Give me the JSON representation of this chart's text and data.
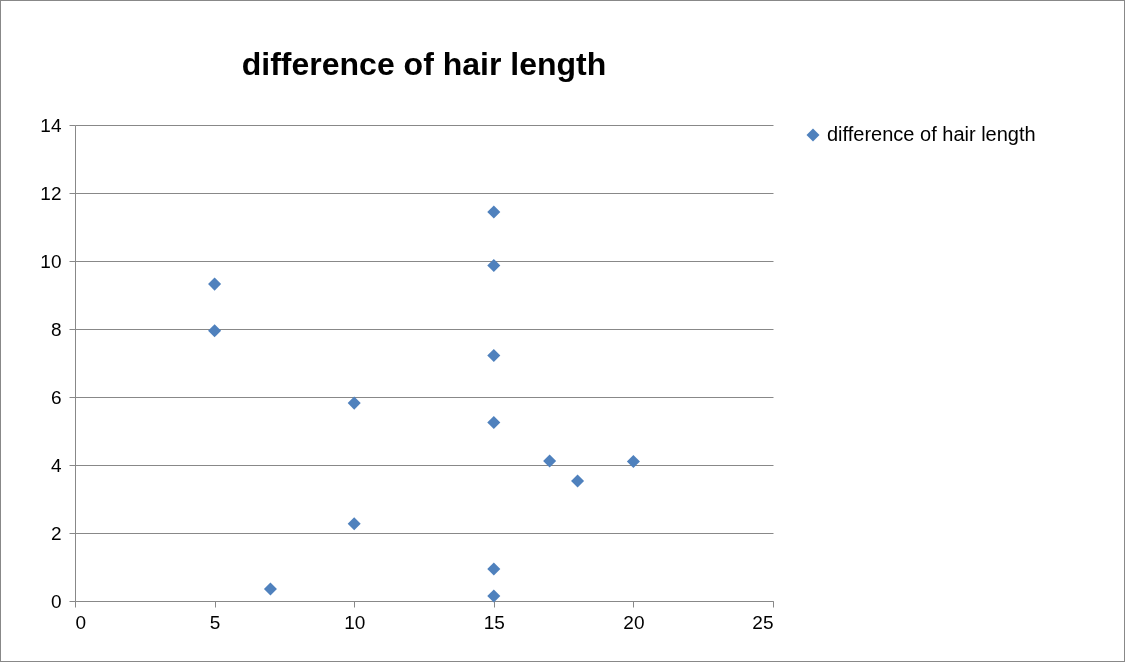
{
  "chart_data": {
    "type": "scatter",
    "title": "difference of hair length",
    "x": [
      5,
      5,
      7,
      10,
      10,
      15,
      15,
      15,
      15,
      15,
      15,
      17,
      18,
      20
    ],
    "series": [
      {
        "name": "difference of hair length",
        "color": "#4f81bd",
        "values": [
          9.32,
          7.95,
          0.35,
          5.82,
          2.27,
          11.44,
          9.87,
          7.22,
          5.25,
          0.94,
          0.15,
          4.12,
          3.53,
          4.1
        ]
      }
    ],
    "xlim": [
      0,
      25
    ],
    "xticks": [
      0,
      5,
      10,
      15,
      20,
      25
    ],
    "ylim": [
      0,
      14
    ],
    "yticks": [
      0,
      2,
      4,
      6,
      8,
      10,
      12,
      14
    ],
    "grid": "y",
    "legend": "right",
    "marker": "diamond"
  }
}
